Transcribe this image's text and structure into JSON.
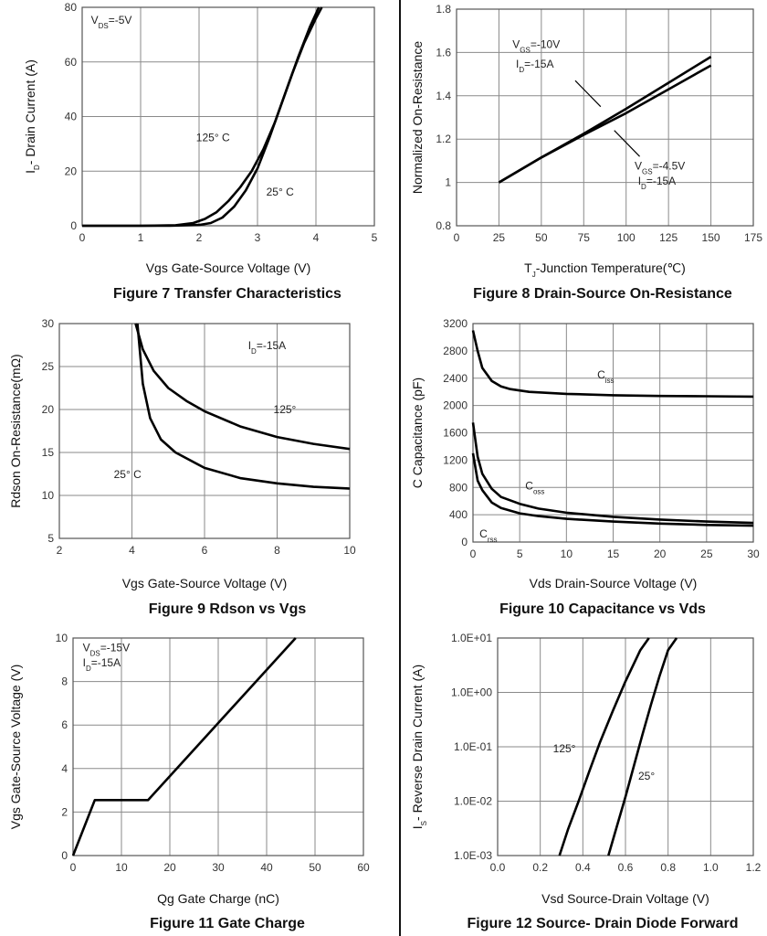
{
  "chart_data": [
    {
      "id": "fig7",
      "type": "line",
      "title": "Figure 7 Transfer Characteristics",
      "xlabel": "Vgs Gate-Source Voltage (V)",
      "ylabel": "I_D- Drain Current (A)",
      "xlim": [
        0,
        5
      ],
      "ylim": [
        0,
        80
      ],
      "xticks": [
        "0",
        "1",
        "2",
        "3",
        "4",
        "5"
      ],
      "yticks": [
        "0",
        "20",
        "40",
        "60",
        "80"
      ],
      "grid": true,
      "notes": [
        {
          "text": "V_DS=-5V",
          "at": [
            0.15,
            74
          ]
        }
      ],
      "labels": [
        {
          "text": "125° C",
          "at": [
            1.95,
            31
          ]
        },
        {
          "text": "25° C",
          "at": [
            3.15,
            11
          ]
        }
      ],
      "series": [
        {
          "name": "125° C",
          "x": [
            0,
            1,
            1.6,
            1.9,
            2.1,
            2.3,
            2.5,
            2.7,
            2.9,
            3.1,
            3.3,
            3.5,
            3.7,
            3.9,
            4.05
          ],
          "y": [
            0,
            0,
            0.2,
            1,
            2.5,
            5,
            9,
            14,
            20,
            28,
            38,
            50,
            62,
            73,
            80
          ]
        },
        {
          "name": "25° C",
          "x": [
            0,
            1.5,
            2.0,
            2.2,
            2.4,
            2.6,
            2.8,
            3.0,
            3.2,
            3.4,
            3.6,
            3.8,
            4.0,
            4.1
          ],
          "y": [
            0,
            0,
            0.3,
            1,
            3,
            7,
            13,
            21,
            32,
            44,
            56,
            67,
            76,
            80
          ]
        }
      ]
    },
    {
      "id": "fig8",
      "type": "line",
      "title": "Figure 8 Drain-Source On-Resistance",
      "xlabel": "T_J-Junction Temperature(℃)",
      "ylabel": "Normalized On-Resistance",
      "xlim": [
        0,
        175
      ],
      "ylim": [
        0.8,
        1.8
      ],
      "xticks": [
        "0",
        "25",
        "50",
        "75",
        "100",
        "125",
        "150",
        "175"
      ],
      "yticks": [
        "0.8",
        "1",
        "1.2",
        "1.4",
        "1.6",
        "1.8"
      ],
      "grid": true,
      "labels": [
        {
          "text": "V_GS=-10V",
          "at": [
            33,
            1.62
          ]
        },
        {
          "text": "I_D=-15A",
          "at": [
            35,
            1.53
          ]
        },
        {
          "text": "V_GS=-4.5V",
          "at": [
            105,
            1.06
          ]
        },
        {
          "text": "I_D=-15A",
          "at": [
            107,
            0.99
          ]
        }
      ],
      "series": [
        {
          "name": "V_GS=-10V",
          "x": [
            25,
            50,
            75,
            100,
            125,
            150
          ],
          "y": [
            1.0,
            1.115,
            1.225,
            1.34,
            1.46,
            1.58
          ]
        },
        {
          "name": "V_GS=-4.5V",
          "x": [
            25,
            50,
            75,
            100,
            125,
            150
          ],
          "y": [
            1.0,
            1.115,
            1.22,
            1.32,
            1.43,
            1.54
          ]
        }
      ]
    },
    {
      "id": "fig9",
      "type": "line",
      "title": "Figure 9 Rdson vs Vgs",
      "xlabel": "Vgs Gate-Source Voltage (V)",
      "ylabel": "Rdson On-Resistance(mΩ)",
      "xlim": [
        2,
        10
      ],
      "ylim": [
        5,
        30
      ],
      "xticks": [
        "2",
        "4",
        "6",
        "8",
        "10"
      ],
      "yticks": [
        "5",
        "10",
        "15",
        "20",
        "25",
        "30"
      ],
      "grid": true,
      "notes": [
        {
          "text": "I_D=-15A",
          "at": [
            7.2,
            27
          ]
        }
      ],
      "labels": [
        {
          "text": "125°",
          "at": [
            7.9,
            19.6
          ]
        },
        {
          "text": "25° C",
          "at": [
            3.5,
            12
          ]
        }
      ],
      "series": [
        {
          "name": "125°",
          "x": [
            4.1,
            4.3,
            4.6,
            5,
            5.5,
            6,
            7,
            8,
            9,
            10
          ],
          "y": [
            30,
            27,
            24.5,
            22.5,
            21,
            19.8,
            18,
            16.8,
            16,
            15.4
          ]
        },
        {
          "name": "25° C",
          "x": [
            4.15,
            4.3,
            4.5,
            4.8,
            5.2,
            6,
            7,
            8,
            9,
            10
          ],
          "y": [
            30,
            23,
            19,
            16.5,
            15,
            13.2,
            12,
            11.4,
            11,
            10.8
          ]
        }
      ]
    },
    {
      "id": "fig10",
      "type": "line",
      "title": "Figure 10 Capacitance vs Vds",
      "xlabel": "Vds Drain-Source Voltage (V)",
      "ylabel": "C Capacitance (pF)",
      "xlim": [
        0,
        30
      ],
      "ylim": [
        0,
        3200
      ],
      "xticks": [
        "0",
        "5",
        "10",
        "15",
        "20",
        "25",
        "30"
      ],
      "yticks": [
        "0",
        "400",
        "800",
        "1200",
        "1600",
        "2000",
        "2400",
        "2800",
        "3200"
      ],
      "grid": true,
      "labels": [
        {
          "text": "C_iss",
          "at": [
            13.3,
            2400
          ]
        },
        {
          "text": "C_oss",
          "at": [
            5.6,
            770
          ]
        },
        {
          "text": "C_rss",
          "at": [
            0.7,
            70
          ]
        }
      ],
      "series": [
        {
          "name": "C_iss",
          "x": [
            0,
            0.5,
            1,
            2,
            3,
            4,
            6,
            10,
            15,
            20,
            25,
            30
          ],
          "y": [
            3100,
            2800,
            2550,
            2360,
            2280,
            2240,
            2200,
            2170,
            2150,
            2140,
            2135,
            2130
          ]
        },
        {
          "name": "C_oss",
          "x": [
            0,
            0.5,
            1,
            2,
            3,
            5,
            7,
            10,
            15,
            20,
            25,
            30
          ],
          "y": [
            1750,
            1250,
            1000,
            780,
            660,
            560,
            490,
            430,
            370,
            330,
            300,
            280
          ]
        },
        {
          "name": "C_rss",
          "x": [
            0,
            0.5,
            1,
            2,
            3,
            5,
            7,
            10,
            15,
            20,
            25,
            30
          ],
          "y": [
            1300,
            900,
            760,
            580,
            500,
            420,
            380,
            340,
            300,
            270,
            250,
            240
          ]
        }
      ]
    },
    {
      "id": "fig11",
      "type": "line",
      "title": "Figure 11 Gate Charge",
      "xlabel": "Qg Gate Charge (nC)",
      "ylabel": "Vgs Gate-Source Voltage (V)",
      "xlim": [
        0,
        60
      ],
      "ylim": [
        0,
        10
      ],
      "xticks": [
        "0",
        "10",
        "20",
        "30",
        "40",
        "50",
        "60"
      ],
      "yticks": [
        "0",
        "2",
        "4",
        "6",
        "8",
        "10"
      ],
      "grid": true,
      "notes": [
        {
          "text": "V_DS=-15V",
          "at": [
            2,
            9.4
          ]
        },
        {
          "text": "I_D=-15A",
          "at": [
            2,
            8.7
          ]
        }
      ],
      "series": [
        {
          "name": "Vgs",
          "x": [
            0,
            4.5,
            15.5,
            46
          ],
          "y": [
            0,
            2.55,
            2.55,
            10
          ]
        }
      ]
    },
    {
      "id": "fig12",
      "type": "line",
      "title": "Figure 12 Source- Drain Diode Forward",
      "xlabel": "Vsd Source-Drain Voltage (V)",
      "ylabel": "I_S- Reverse Drain Current (A)",
      "xlim": [
        0,
        1.2
      ],
      "ylim": [
        0.001,
        10
      ],
      "yscale": "log",
      "xticks": [
        "0.0",
        "0.2",
        "0.4",
        "0.6",
        "0.8",
        "1.0",
        "1.2"
      ],
      "yticks": [
        "1.0E-03",
        "1.0E-02",
        "1.0E-01",
        "1.0E+00",
        "1.0E+01"
      ],
      "grid": true,
      "labels": [
        {
          "text": "125°",
          "at": [
            0.26,
            0.08
          ]
        },
        {
          "text": "25°",
          "at": [
            0.66,
            0.025
          ]
        }
      ],
      "series": [
        {
          "name": "125°",
          "x": [
            0.29,
            0.33,
            0.38,
            0.43,
            0.48,
            0.54,
            0.6,
            0.67,
            0.71
          ],
          "y": [
            0.001,
            0.003,
            0.01,
            0.035,
            0.12,
            0.45,
            1.6,
            6,
            10
          ]
        },
        {
          "name": "25°",
          "x": [
            0.52,
            0.56,
            0.6,
            0.64,
            0.68,
            0.72,
            0.76,
            0.8,
            0.84
          ],
          "y": [
            0.001,
            0.0035,
            0.012,
            0.045,
            0.17,
            0.6,
            2,
            6,
            10
          ]
        }
      ]
    }
  ]
}
